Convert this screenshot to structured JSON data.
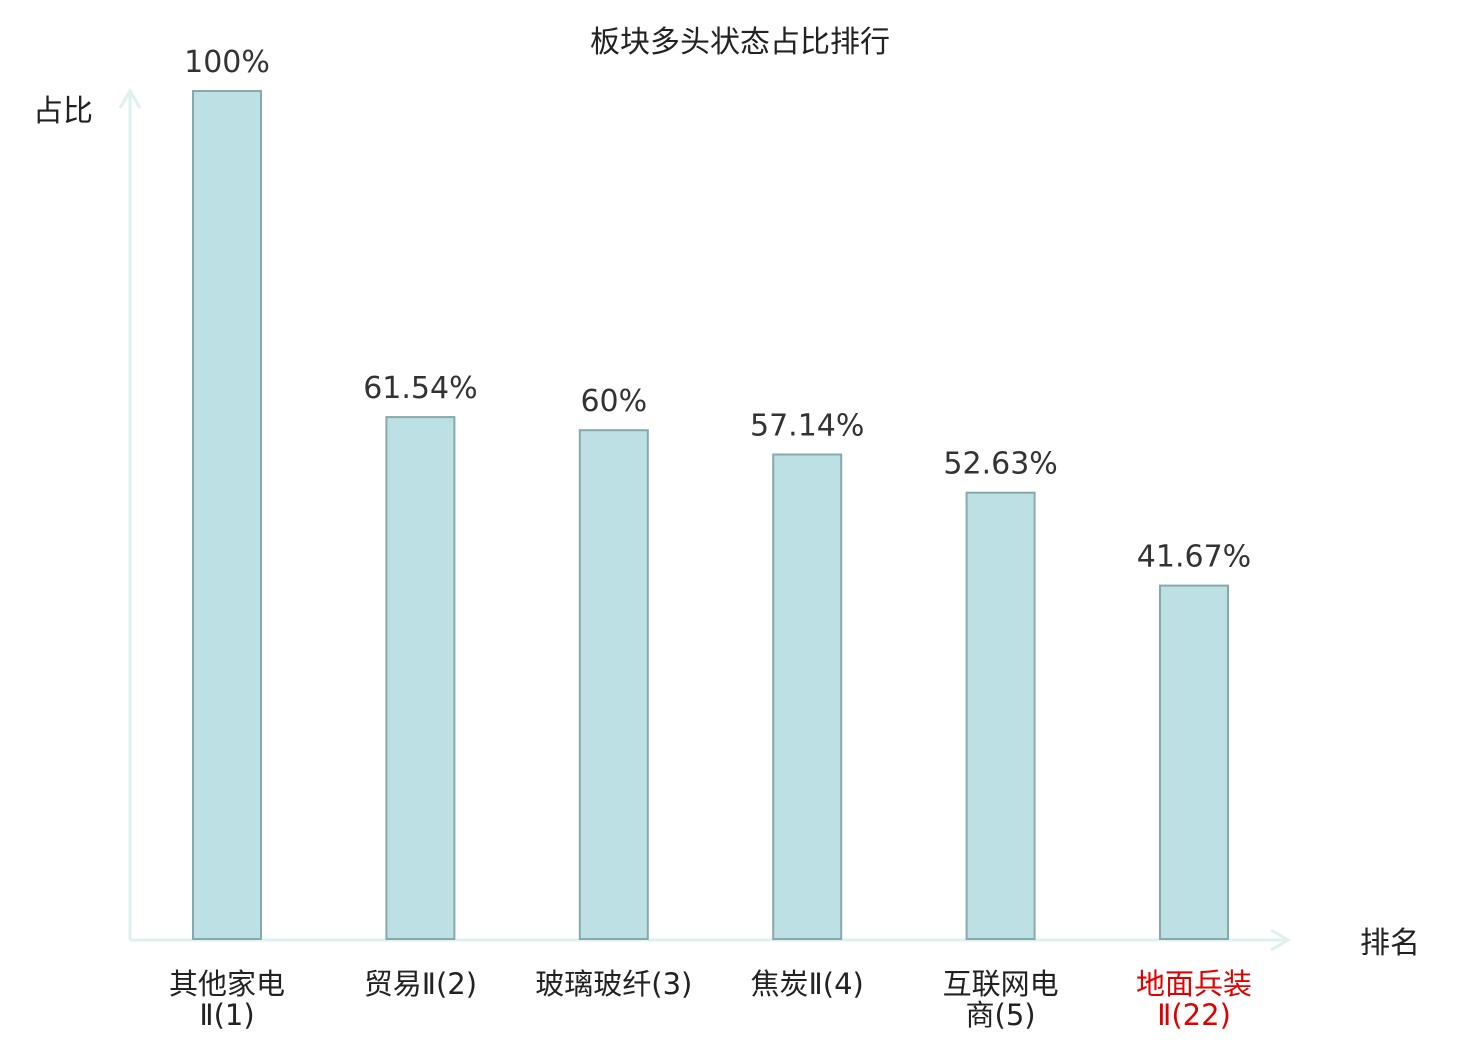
{
  "colors": {
    "bar_fill": "#bce0e3",
    "bar_stroke": "#87a9ab",
    "axis": "#def1ee",
    "text": "#222222",
    "highlight": "#e00000"
  },
  "chart_data": {
    "type": "bar",
    "title": "板块多头状态占比排行",
    "ylabel": "占比",
    "xlabel": "排名",
    "ylim": [
      0,
      100
    ],
    "grid": false,
    "categories": [
      {
        "line1": "其他家电",
        "line2": "Ⅱ(1)",
        "highlight": false
      },
      {
        "line1": "贸易Ⅱ(2)",
        "line2": "",
        "highlight": false
      },
      {
        "line1": "玻璃玻纤(3)",
        "line2": "",
        "highlight": false
      },
      {
        "line1": "焦炭Ⅱ(4)",
        "line2": "",
        "highlight": false
      },
      {
        "line1": "互联网电",
        "line2": "商(5)",
        "highlight": false
      },
      {
        "line1": "地面兵装",
        "line2": "Ⅱ(22)",
        "highlight": true
      }
    ],
    "values": [
      100,
      61.54,
      60,
      57.14,
      52.63,
      41.67
    ],
    "value_labels": [
      "100%",
      "61.54%",
      "60%",
      "57.14%",
      "52.63%",
      "41.67%"
    ]
  }
}
